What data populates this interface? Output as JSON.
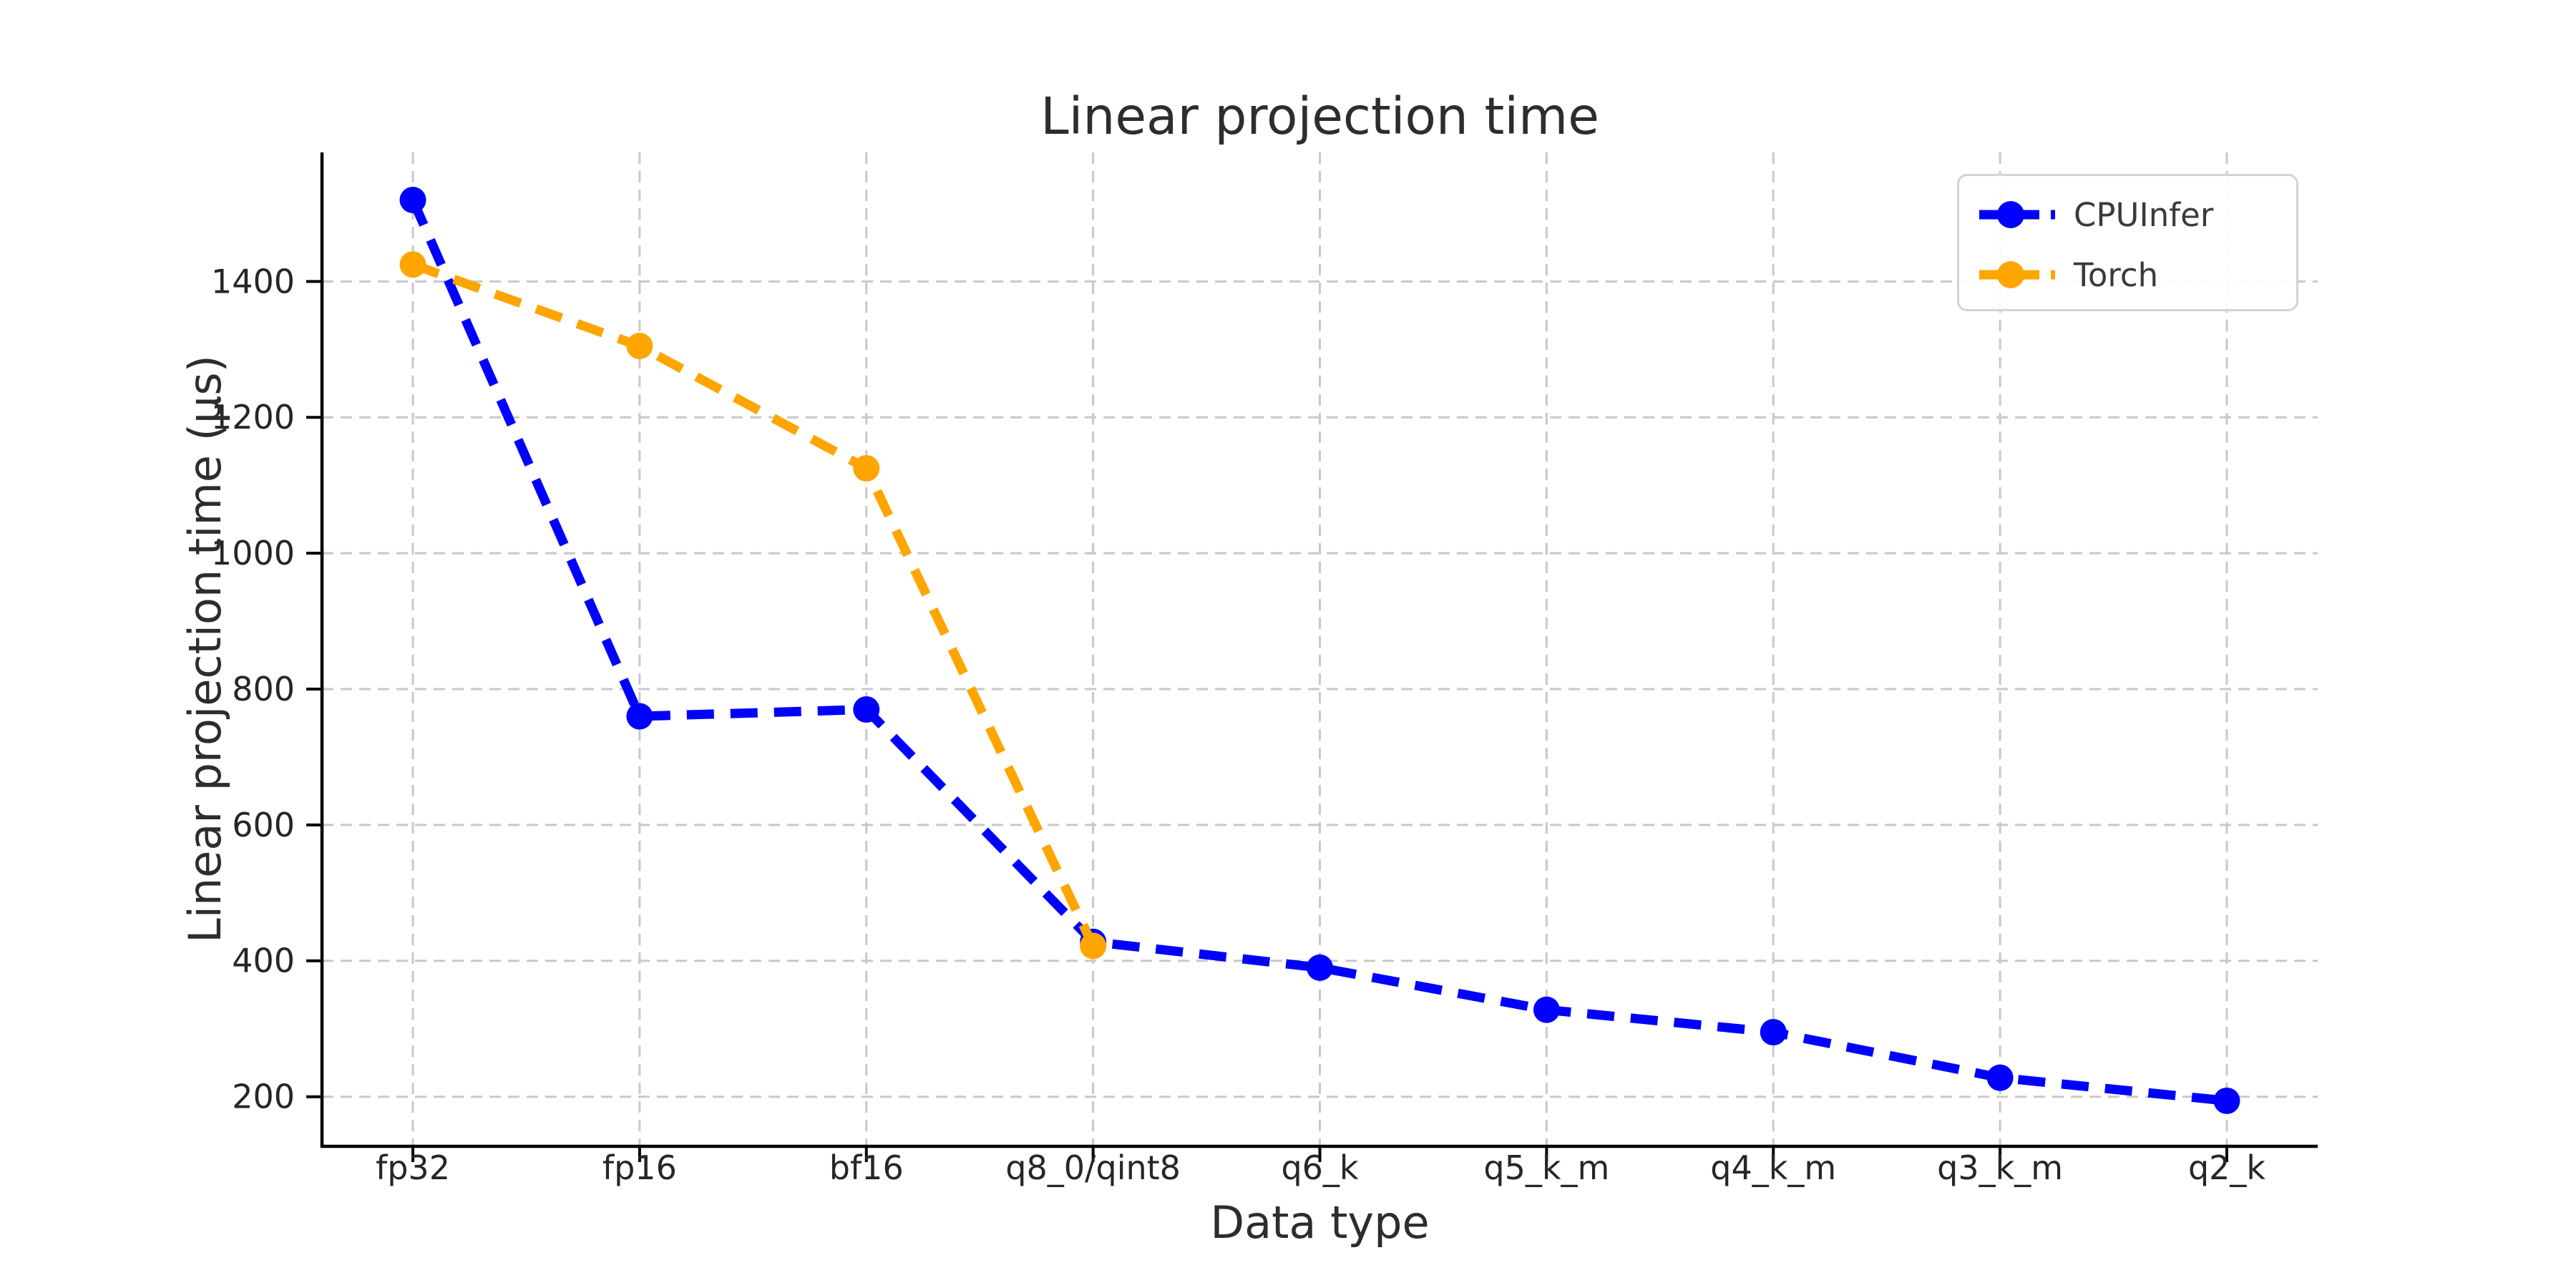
{
  "chart_data": {
    "type": "line",
    "title": "Linear projection time",
    "xlabel": "Data type",
    "ylabel": "Linear projection time (µs)",
    "categories": [
      "fp32",
      "fp16",
      "bf16",
      "q8_0/qint8",
      "q6_k",
      "q5_k_m",
      "q4_k_m",
      "q3_k_m",
      "q2_k"
    ],
    "series": [
      {
        "name": "CPUInfer",
        "color": "#0000ff",
        "linestyle": "dashed",
        "marker": "circle",
        "values": [
          1520,
          760,
          770,
          428,
          390,
          328,
          295,
          228,
          194
        ]
      },
      {
        "name": "Torch",
        "color": "#ffa500",
        "linestyle": "dashed",
        "marker": "circle",
        "values": [
          1425,
          1305,
          1125,
          422,
          null,
          null,
          null,
          null,
          null
        ]
      }
    ],
    "yticks": [
      200,
      400,
      600,
      800,
      1000,
      1200,
      1400
    ],
    "ylim": [
      127,
      1590
    ],
    "grid": true,
    "grid_color": "#c8c8c8",
    "spine_color": "#000000",
    "text_color": "#2d2d2d",
    "tick_label_color": "#262626",
    "legend_position": "upper right",
    "background": "#ffffff"
  }
}
